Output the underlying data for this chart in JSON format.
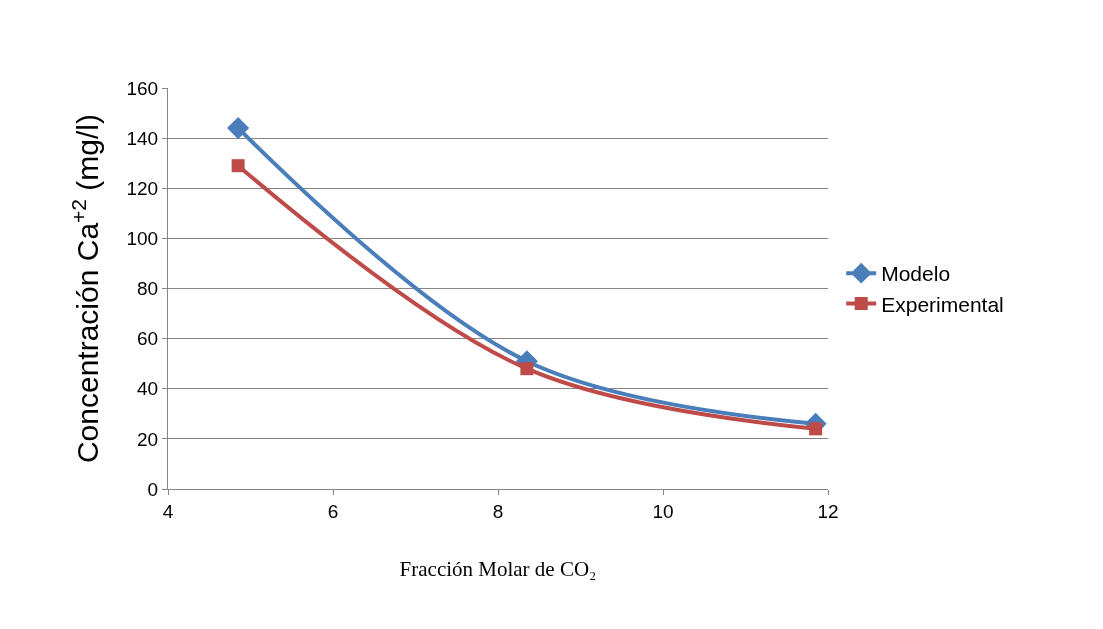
{
  "chart_data": {
    "type": "line",
    "xlabel": "Fracción Molar de CO₂",
    "ylabel": "Concentración Ca$^{+2}$ (mg/l)",
    "x": [
      4.85,
      8.35,
      11.85
    ],
    "series": [
      {
        "name": "Modelo",
        "color": "#4a7ebb",
        "marker": "diamond",
        "values": [
          144,
          51,
          26
        ]
      },
      {
        "name": "Experimental",
        "color": "#be4b48",
        "marker": "square",
        "values": [
          129,
          48,
          24
        ]
      }
    ],
    "xlim": [
      4,
      12
    ],
    "xticks": [
      4,
      6,
      8,
      10,
      12
    ],
    "ylim": [
      0,
      160
    ],
    "yticks": [
      0,
      20,
      40,
      60,
      80,
      100,
      120,
      140,
      160
    ],
    "grid": "y",
    "legend": "right",
    "line_style": "solid"
  }
}
